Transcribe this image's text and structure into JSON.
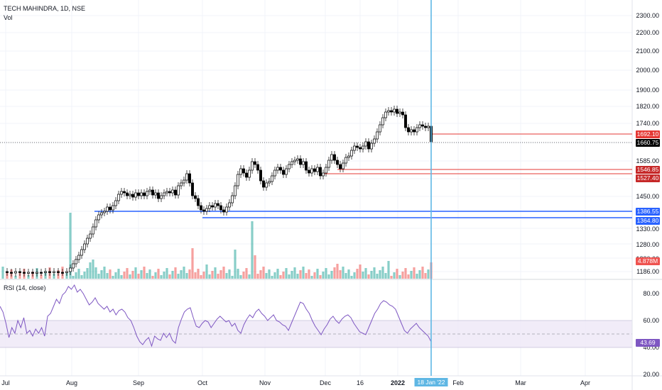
{
  "legend": {
    "symbol_title": "TECH MAHINDRA, 1D, NSE",
    "volume": "Vol",
    "rsi": "RSI (14, close)"
  },
  "colors": {
    "up": "#26a69a",
    "down": "#ef5350",
    "support": "#2962ff",
    "resistance": "#e53935",
    "crosshair": "#5fb7e4",
    "rsi_line": "#7e57c2",
    "rsi_band": "#ede7f6",
    "candle_up": "#ffffff",
    "candle_down": "#000000"
  },
  "price_axis": {
    "ticks": [
      "2300.00",
      "2200.00",
      "2100.00",
      "2000.00",
      "1900.00",
      "1820.00",
      "1740.00",
      "1660.00",
      "1585.00",
      "1520.00",
      "1450.00",
      "1386.55",
      "1330.00",
      "1280.00",
      "1230.00",
      "1186.00"
    ]
  },
  "price_tags": {
    "resistance_high": "1692.10",
    "last": "1660.75",
    "resistance_mid1": "1546.85",
    "resistance_mid2": "1527.40",
    "support_high": "1386.55",
    "support_low": "1364.80",
    "volume": "4.878M"
  },
  "rsi_axis": {
    "ticks": [
      "80.00",
      "60.00",
      "40.00",
      "20.00"
    ],
    "current": "43.69"
  },
  "time_axis": {
    "labels": [
      "Jul",
      "Aug",
      "Sep",
      "Oct",
      "Nov",
      "Dec",
      "16",
      "2022",
      "Feb",
      "Mar",
      "Apr"
    ],
    "crosshair_date": "18 Jan '22"
  }
}
